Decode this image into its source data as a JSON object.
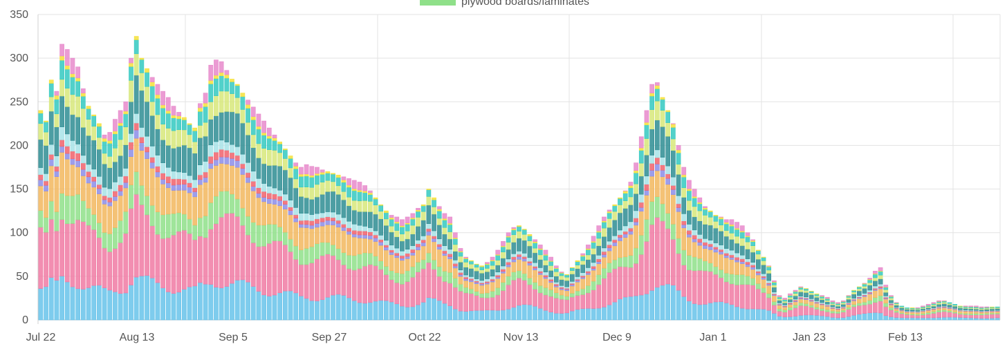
{
  "chart_data": {
    "type": "bar",
    "stacked": true,
    "grid": true,
    "legend_position": "top",
    "legend": [
      {
        "label": "plywood boards/laminates",
        "color": "#8fe089"
      }
    ],
    "ylim": [
      0,
      350
    ],
    "y_ticks": [
      0,
      50,
      100,
      150,
      200,
      250,
      300,
      350
    ],
    "x_tick_labels": [
      "Jul 22",
      "Aug 13",
      "Sep 5",
      "Sep 27",
      "Oct 22",
      "Nov 13",
      "Dec 9",
      "Jan 1",
      "Jan 23",
      "Feb 13"
    ],
    "palette": [
      "#67c3ea",
      "#f07aa3",
      "#8fe089",
      "#f2b75e",
      "#8c8de8",
      "#f0626b",
      "#a8e3e8",
      "#2e8d93",
      "#d7e87a",
      "#34c9c1",
      "#f5e13a",
      "#e78acb"
    ],
    "totals": [
      240,
      228,
      275,
      262,
      316,
      310,
      300,
      290,
      265,
      245,
      235,
      225,
      212,
      215,
      230,
      240,
      250,
      300,
      325,
      300,
      288,
      278,
      270,
      262,
      255,
      245,
      238,
      232,
      225,
      220,
      248,
      260,
      292,
      298,
      296,
      286,
      276,
      270,
      260,
      252,
      244,
      236,
      228,
      220,
      212,
      204,
      196,
      188,
      180,
      175,
      178,
      176,
      175,
      172,
      170,
      168,
      166,
      164,
      162,
      160,
      158,
      154,
      148,
      140,
      132,
      125,
      120,
      118,
      115,
      118,
      122,
      128,
      132,
      150,
      140,
      130,
      122,
      118,
      100,
      82,
      72,
      68,
      64,
      62,
      66,
      72,
      80,
      90,
      100,
      106,
      108,
      104,
      98,
      92,
      86,
      80,
      72,
      62,
      55,
      52,
      60,
      68,
      76,
      86,
      96,
      108,
      118,
      126,
      132,
      140,
      148,
      158,
      180,
      210,
      240,
      270,
      272,
      255,
      240,
      225,
      200,
      175,
      160,
      150,
      140,
      130,
      125,
      120,
      118,
      115,
      115,
      112,
      108,
      100,
      92,
      80,
      72,
      62,
      45,
      28,
      25,
      30,
      34,
      38,
      36,
      33,
      30,
      28,
      26,
      22,
      20,
      22,
      28,
      34,
      38,
      42,
      48,
      56,
      60,
      40,
      28,
      20,
      16,
      14,
      14,
      14,
      16,
      18,
      20,
      22,
      22,
      20,
      18,
      16,
      16,
      16,
      16,
      15,
      15,
      15,
      15
    ]
  }
}
